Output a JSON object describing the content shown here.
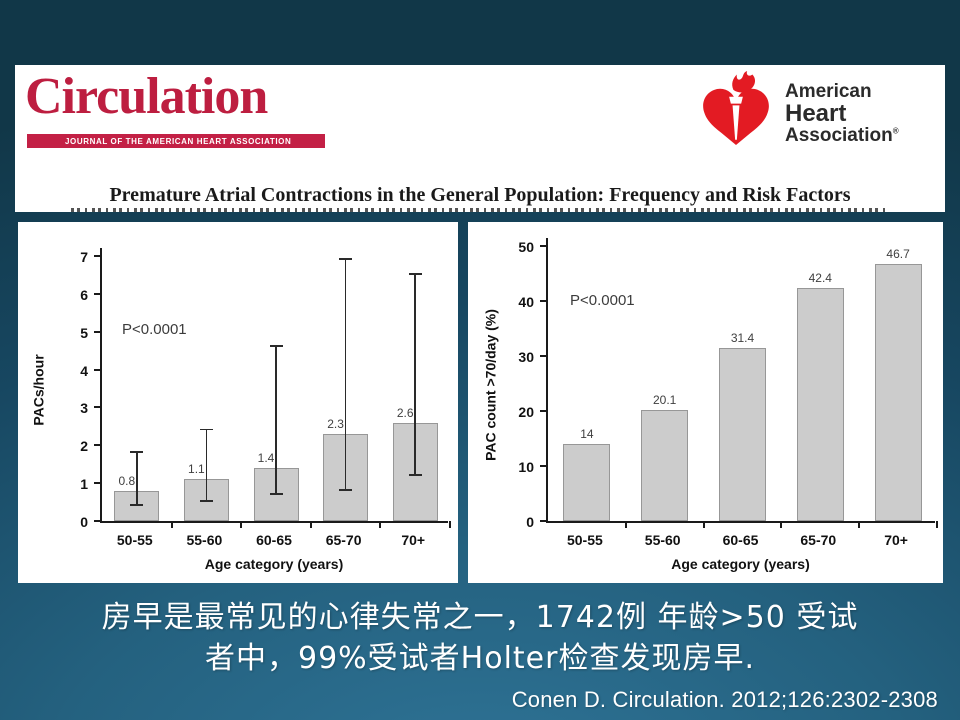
{
  "slide": {
    "background_top": "#113748",
    "background_bottom": "#2f7497"
  },
  "header": {
    "journal_logo": "Circulation",
    "journal_tagline": "Journal of the American Heart Association",
    "brand_red": "#bd1e40",
    "aha_logo": {
      "line1": "American",
      "line2": "Heart",
      "line3": "Association",
      "registered": "®",
      "heart_red": "#e31b23"
    },
    "paper_title": "Premature Atrial Contractions in the General Population: Frequency and Risk Factors"
  },
  "chart_data": [
    {
      "type": "bar",
      "categories": [
        "50-55",
        "55-60",
        "60-65",
        "65-70",
        "70+"
      ],
      "values": [
        0.8,
        1.1,
        1.4,
        2.3,
        2.6
      ],
      "value_labels": [
        "0.8",
        "1.1",
        "1.4",
        "2.3",
        "2.6"
      ],
      "error_low": [
        0.4,
        0.5,
        0.7,
        0.8,
        1.2
      ],
      "error_high": [
        1.8,
        2.4,
        4.6,
        6.9,
        6.5
      ],
      "xlabel": "Age category (years)",
      "ylabel": "PACs/hour",
      "ylim": [
        0,
        7
      ],
      "ytick_step": 1,
      "annotation": "P<0.0001",
      "bar_color": "#cccccc",
      "grid": false,
      "legend": false
    },
    {
      "type": "bar",
      "categories": [
        "50-55",
        "55-60",
        "60-65",
        "65-70",
        "70+"
      ],
      "values": [
        14,
        20.1,
        31.4,
        42.4,
        46.7
      ],
      "value_labels": [
        "14",
        "20.1",
        "31.4",
        "42.4",
        "46.7"
      ],
      "xlabel": "Age category (years)",
      "ylabel": "PAC count >70/day (%)",
      "ylim": [
        0,
        50
      ],
      "ytick_step": 10,
      "annotation": "P<0.0001",
      "bar_color": "#cccccc",
      "grid": false,
      "legend": false
    }
  ],
  "body_text": {
    "line1": "房早是最常见的心律失常之一，1742例 年龄>50 受试",
    "line2": "者中，99%受试者Holter检查发现房早.",
    "citation": "Conen D. Circulation. 2012;126:2302-2308"
  }
}
